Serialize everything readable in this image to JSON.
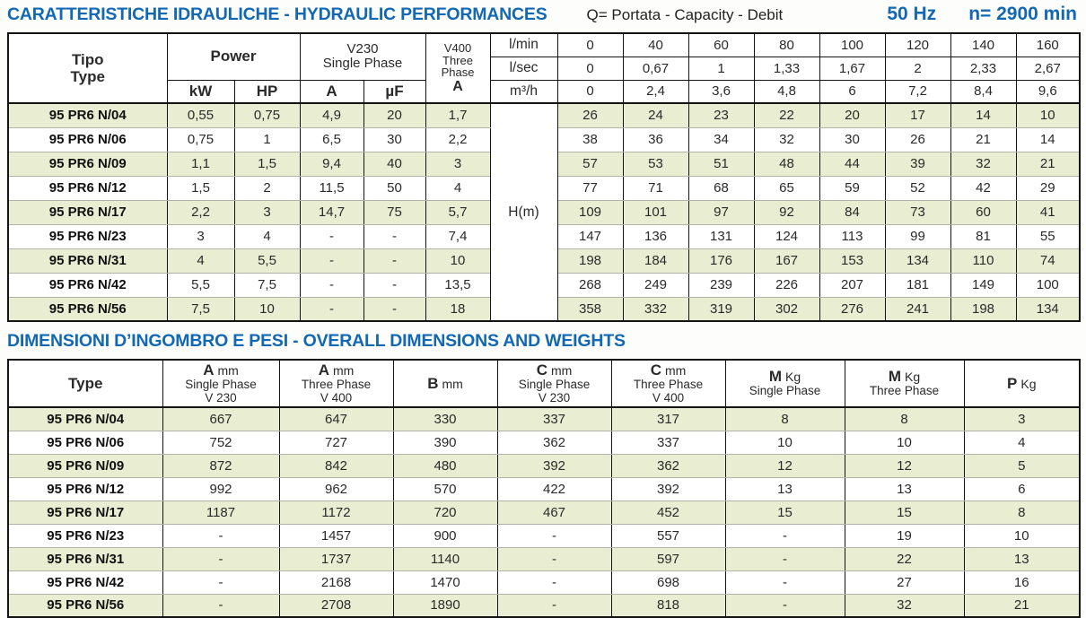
{
  "titles": {
    "hydraulic": "CARATTERISTICHE IDRAULICHE - HYDRAULIC PERFORMANCES",
    "capacity_note": "Q= Portata - Capacity - Debit",
    "frequency": "50 Hz",
    "speed": "n= 2900 min",
    "dimensions": "DIMENSIONI D’INGOMBRO E PESI - OVERALL DIMENSIONS AND WEIGHTS"
  },
  "colors": {
    "accent_blue": "#1268b3",
    "stripe_green": "#e9edd2"
  },
  "hydraulic_table": {
    "type_header": {
      "line1": "Tipo",
      "line2": "Type"
    },
    "power_header": {
      "label": "Power",
      "kw": "kW",
      "hp": "HP"
    },
    "v230_header": {
      "line1": "V230",
      "line2": "Single Phase",
      "a": "A",
      "uf": "µF"
    },
    "v400_header": {
      "line1": "V400",
      "line2": "Three",
      "line3": "Phase",
      "a": "A"
    },
    "flow_units": {
      "lmin": "l/min",
      "lsec": "l/sec",
      "m3h": "m³/h"
    },
    "head_unit": "H(m)",
    "flow_values": {
      "lmin": [
        "0",
        "40",
        "60",
        "80",
        "100",
        "120",
        "140",
        "160"
      ],
      "lsec": [
        "0",
        "0,67",
        "1",
        "1,33",
        "1,67",
        "2",
        "2,33",
        "2,67"
      ],
      "m3h": [
        "0",
        "2,4",
        "3,6",
        "4,8",
        "6",
        "7,2",
        "8,4",
        "9,6"
      ]
    },
    "rows": [
      {
        "type": "95 PR6 N/04",
        "kw": "0,55",
        "hp": "0,75",
        "a230": "4,9",
        "uf": "20",
        "a400": "1,7",
        "head": [
          "26",
          "24",
          "23",
          "22",
          "20",
          "17",
          "14",
          "10"
        ]
      },
      {
        "type": "95 PR6 N/06",
        "kw": "0,75",
        "hp": "1",
        "a230": "6,5",
        "uf": "30",
        "a400": "2,2",
        "head": [
          "38",
          "36",
          "34",
          "32",
          "30",
          "26",
          "21",
          "14"
        ]
      },
      {
        "type": "95 PR6 N/09",
        "kw": "1,1",
        "hp": "1,5",
        "a230": "9,4",
        "uf": "40",
        "a400": "3",
        "head": [
          "57",
          "53",
          "51",
          "48",
          "44",
          "39",
          "32",
          "21"
        ]
      },
      {
        "type": "95 PR6 N/12",
        "kw": "1,5",
        "hp": "2",
        "a230": "11,5",
        "uf": "50",
        "a400": "4",
        "head": [
          "77",
          "71",
          "68",
          "65",
          "59",
          "52",
          "42",
          "29"
        ]
      },
      {
        "type": "95 PR6 N/17",
        "kw": "2,2",
        "hp": "3",
        "a230": "14,7",
        "uf": "75",
        "a400": "5,7",
        "head": [
          "109",
          "101",
          "97",
          "92",
          "84",
          "73",
          "60",
          "41"
        ]
      },
      {
        "type": "95 PR6 N/23",
        "kw": "3",
        "hp": "4",
        "a230": "-",
        "uf": "-",
        "a400": "7,4",
        "head": [
          "147",
          "136",
          "131",
          "124",
          "113",
          "99",
          "81",
          "55"
        ]
      },
      {
        "type": "95 PR6 N/31",
        "kw": "4",
        "hp": "5,5",
        "a230": "-",
        "uf": "-",
        "a400": "10",
        "head": [
          "198",
          "184",
          "176",
          "167",
          "153",
          "134",
          "110",
          "74"
        ]
      },
      {
        "type": "95 PR6 N/42",
        "kw": "5,5",
        "hp": "7,5",
        "a230": "-",
        "uf": "-",
        "a400": "13,5",
        "head": [
          "268",
          "249",
          "239",
          "226",
          "207",
          "181",
          "149",
          "100"
        ]
      },
      {
        "type": "95 PR6 N/56",
        "kw": "7,5",
        "hp": "10",
        "a230": "-",
        "uf": "-",
        "a400": "18",
        "head": [
          "358",
          "332",
          "319",
          "302",
          "276",
          "241",
          "198",
          "134"
        ]
      }
    ]
  },
  "dimensions_table": {
    "headers": {
      "type": "Type",
      "a_sp": {
        "sym": "A",
        "unit": "mm",
        "line2": "Single Phase",
        "line3": "V 230"
      },
      "a_tp": {
        "sym": "A",
        "unit": "mm",
        "line2": "Three Phase",
        "line3": "V 400"
      },
      "b": {
        "sym": "B",
        "unit": "mm"
      },
      "c_sp": {
        "sym": "C",
        "unit": "mm",
        "line2": "Single Phase",
        "line3": "V 230"
      },
      "c_tp": {
        "sym": "C",
        "unit": "mm",
        "line2": "Three Phase",
        "line3": "V 400"
      },
      "m_sp": {
        "sym": "M",
        "unit": "Kg",
        "line2": "Single Phase"
      },
      "m_tp": {
        "sym": "M",
        "unit": "Kg",
        "line2": "Three Phase"
      },
      "p": {
        "sym": "P",
        "unit": "Kg"
      }
    },
    "rows": [
      {
        "type": "95 PR6 N/04",
        "a_sp": "667",
        "a_tp": "647",
        "b": "330",
        "c_sp": "337",
        "c_tp": "317",
        "m_sp": "8",
        "m_tp": "8",
        "p": "3"
      },
      {
        "type": "95 PR6 N/06",
        "a_sp": "752",
        "a_tp": "727",
        "b": "390",
        "c_sp": "362",
        "c_tp": "337",
        "m_sp": "10",
        "m_tp": "10",
        "p": "4"
      },
      {
        "type": "95 PR6 N/09",
        "a_sp": "872",
        "a_tp": "842",
        "b": "480",
        "c_sp": "392",
        "c_tp": "362",
        "m_sp": "12",
        "m_tp": "12",
        "p": "5"
      },
      {
        "type": "95 PR6 N/12",
        "a_sp": "992",
        "a_tp": "962",
        "b": "570",
        "c_sp": "422",
        "c_tp": "392",
        "m_sp": "13",
        "m_tp": "13",
        "p": "6"
      },
      {
        "type": "95 PR6 N/17",
        "a_sp": "1187",
        "a_tp": "1172",
        "b": "720",
        "c_sp": "467",
        "c_tp": "452",
        "m_sp": "15",
        "m_tp": "15",
        "p": "8"
      },
      {
        "type": "95 PR6 N/23",
        "a_sp": "-",
        "a_tp": "1457",
        "b": "900",
        "c_sp": "-",
        "c_tp": "557",
        "m_sp": "-",
        "m_tp": "19",
        "p": "10"
      },
      {
        "type": "95 PR6 N/31",
        "a_sp": "-",
        "a_tp": "1737",
        "b": "1140",
        "c_sp": "-",
        "c_tp": "597",
        "m_sp": "-",
        "m_tp": "22",
        "p": "13"
      },
      {
        "type": "95 PR6 N/42",
        "a_sp": "-",
        "a_tp": "2168",
        "b": "1470",
        "c_sp": "-",
        "c_tp": "698",
        "m_sp": "-",
        "m_tp": "27",
        "p": "16"
      },
      {
        "type": "95 PR6 N/56",
        "a_sp": "-",
        "a_tp": "2708",
        "b": "1890",
        "c_sp": "-",
        "c_tp": "818",
        "m_sp": "-",
        "m_tp": "32",
        "p": "21"
      }
    ]
  }
}
